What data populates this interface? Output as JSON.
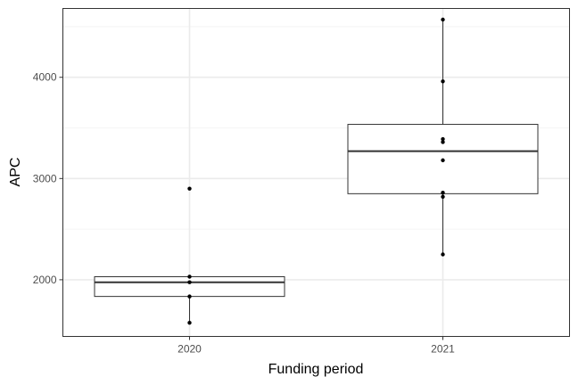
{
  "chart_data": {
    "type": "boxplot",
    "title": "",
    "xlabel": "Funding period",
    "ylabel": "APC",
    "ylim": [
      1440,
      4680
    ],
    "y_ticks": [
      2000,
      3000,
      4000
    ],
    "y_minor_ticks": [
      2500,
      3500,
      4500
    ],
    "grid": true,
    "categories": [
      "2020",
      "2021"
    ],
    "boxes": [
      {
        "category": "2020",
        "min": 1575,
        "q1": 1835,
        "median": 1975,
        "q3": 2030,
        "max": 2030
      },
      {
        "category": "2021",
        "min": 2250,
        "q1": 2850,
        "median": 3270,
        "q3": 3535,
        "max": 4570
      }
    ],
    "points": [
      {
        "category": "2020",
        "values": [
          2900,
          2030,
          1975,
          1835,
          1575
        ]
      },
      {
        "category": "2021",
        "values": [
          4570,
          3960,
          3390,
          3360,
          3180,
          2860,
          2820,
          2250
        ]
      }
    ]
  }
}
